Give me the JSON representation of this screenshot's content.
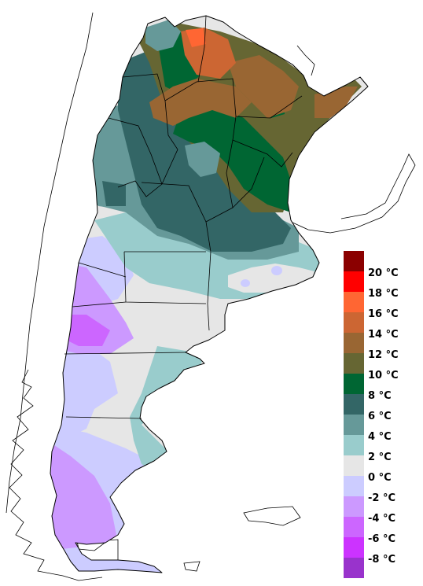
{
  "legend": {
    "entries": [
      {
        "label": "20 °C",
        "color": "#8b0000"
      },
      {
        "label": "18 °C",
        "color": "#ff0000"
      },
      {
        "label": "16 °C",
        "color": "#ff6633"
      },
      {
        "label": "14 °C",
        "color": "#cc6633"
      },
      {
        "label": "12 °C",
        "color": "#996633"
      },
      {
        "label": "10 °C",
        "color": "#666633"
      },
      {
        "label": "8 °C",
        "color": "#006633"
      },
      {
        "label": "6 °C",
        "color": "#336666"
      },
      {
        "label": "4 °C",
        "color": "#669999"
      },
      {
        "label": "2 °C",
        "color": "#99cccc"
      },
      {
        "label": "0 °C",
        "color": "#e6e6e6"
      },
      {
        "label": "-2 °C",
        "color": "#ccccff"
      },
      {
        "label": "-4 °C",
        "color": "#cc99ff"
      },
      {
        "label": "-6 °C",
        "color": "#cc66ff"
      },
      {
        "label": "-8 °C",
        "color": "#cc33ff"
      },
      {
        "label": "",
        "color": "#9933cc"
      }
    ]
  }
}
